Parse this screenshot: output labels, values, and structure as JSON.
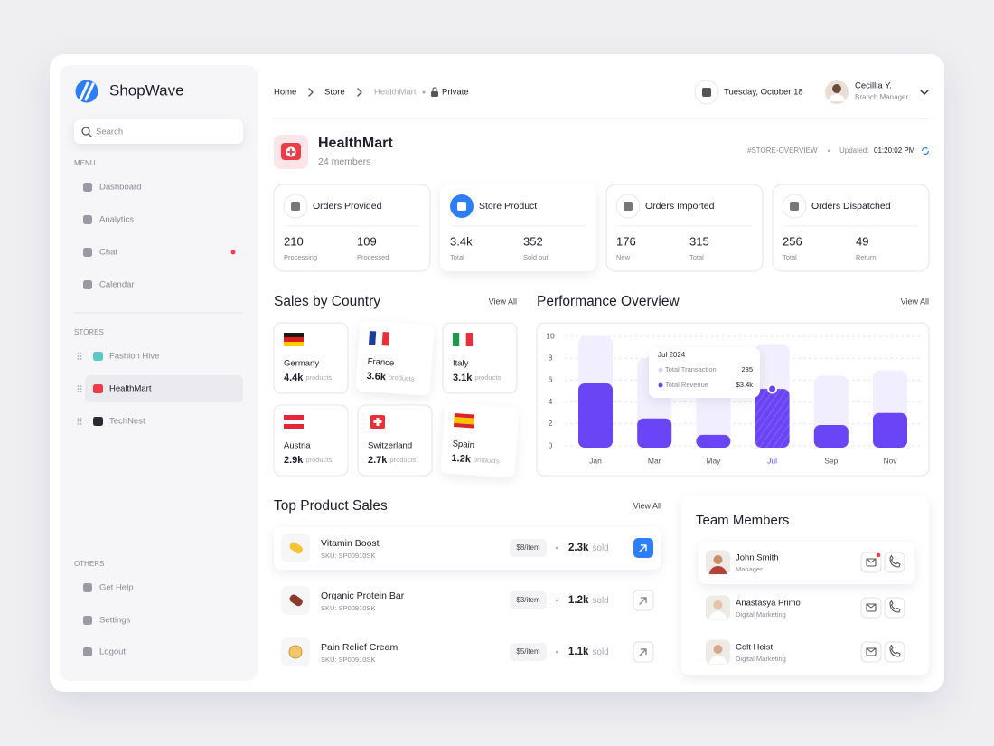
{
  "brand": "ShopWave",
  "search": "Search",
  "sidebar": {
    "menu_title": "MENU",
    "menu": [
      "Dashboard",
      "Analytics",
      "Chat",
      "Calendar"
    ],
    "stores_title": "STORES",
    "stores": [
      "Fashion Hive",
      "HealthMart",
      "TechNest"
    ],
    "others_title": "OTHERS",
    "others": [
      "Get Help",
      "Settings",
      "Logout"
    ]
  },
  "breadcrumb": [
    "Home",
    "Store",
    "HealthMart",
    "Private"
  ],
  "header": {
    "date": "Tuesday, October 18",
    "user_name": "Cecillia Y.",
    "user_role": "Branch Manager"
  },
  "store": {
    "name": "HealthMart",
    "members": "24 members",
    "tag": "#STORE-OVERVIEW",
    "updated_label": "Updated:",
    "updated_time": "01:20:02 PM"
  },
  "stats": [
    {
      "title": "Orders Provided",
      "items": [
        {
          "value": "210",
          "label": "Processing"
        },
        {
          "value": "109",
          "label": "Processed"
        }
      ]
    },
    {
      "title": "Store Product",
      "items": [
        {
          "value": "3.4k",
          "label": "Total"
        },
        {
          "value": "352",
          "label": "Sold out"
        }
      ]
    },
    {
      "title": "Orders Imported",
      "items": [
        {
          "value": "176",
          "label": "New"
        },
        {
          "value": "315",
          "label": "Total"
        }
      ]
    },
    {
      "title": "Orders Dispatched",
      "items": [
        {
          "value": "256",
          "label": "Total"
        },
        {
          "value": "49",
          "label": "Return"
        }
      ]
    }
  ],
  "sales_by_country": {
    "title": "Sales by Country",
    "view_all": "View All",
    "unit": "products",
    "countries": [
      {
        "name": "Germany",
        "value": "4.4k"
      },
      {
        "name": "France",
        "value": "3.6k"
      },
      {
        "name": "Italy",
        "value": "3.1k"
      },
      {
        "name": "Austria",
        "value": "2.9k"
      },
      {
        "name": "Switzerland",
        "value": "2.7k"
      },
      {
        "name": "Spain",
        "value": "1.2k"
      }
    ]
  },
  "chart_data": {
    "type": "bar",
    "title": "Performance Overview",
    "view_all": "View All",
    "categories": [
      "Jan",
      "Mar",
      "May",
      "Jul",
      "Sep",
      "Nov"
    ],
    "series": [
      {
        "color": "#f1eefd",
        "values": [
          10,
          8,
          5.2,
          9.3,
          6.4,
          6.9
        ]
      },
      {
        "color": "#6a45f5",
        "values": [
          5.7,
          2.5,
          1,
          5.2,
          1.9,
          3
        ]
      }
    ],
    "ylim": [
      0,
      10
    ],
    "yticks": [
      0,
      2,
      4,
      6,
      8,
      10
    ],
    "grid": true,
    "tooltip": {
      "title": "Jul 2024",
      "rows": [
        {
          "label": "Total Transaction",
          "value": "235"
        },
        {
          "label": "Total Revenue",
          "value": "$3.4k"
        }
      ]
    }
  },
  "top_products": {
    "title": "Top Product Sales",
    "view_all": "View All",
    "sold_label": "sold",
    "items": [
      {
        "name": "Vitamin Boost",
        "sku": "SKU: SP00910SK",
        "price": "$8/item",
        "sold": "2.3k"
      },
      {
        "name": "Organic Protein Bar",
        "sku": "SKU: SP00910SK",
        "price": "$3/item",
        "sold": "1.2k"
      },
      {
        "name": "Pain Relief Cream",
        "sku": "SKU: SP00910SK",
        "price": "$5/item",
        "sold": "1.1k"
      }
    ]
  },
  "team": {
    "title": "Team Members",
    "members": [
      {
        "name": "John Smith",
        "role": "Manager"
      },
      {
        "name": "Anastasya Primo",
        "role": "Digital Marketing"
      },
      {
        "name": "Colt Heist",
        "role": "Digital Marketing"
      }
    ]
  }
}
